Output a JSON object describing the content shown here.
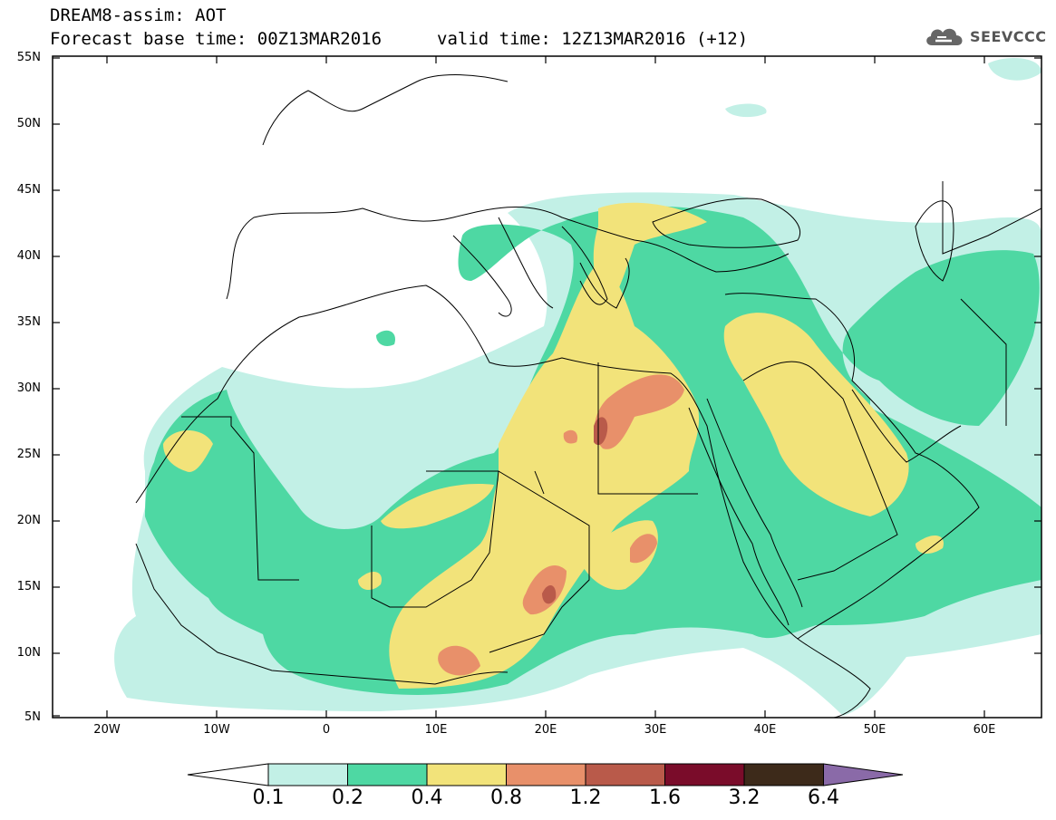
{
  "header": {
    "title": "DREAM8-assim: AOT",
    "base_time": "Forecast base time: 00Z13MAR2016",
    "valid_time": "valid time: 12Z13MAR2016 (+12)"
  },
  "logo": {
    "text": "SEEVCCC",
    "icon": "cloud-icon"
  },
  "map": {
    "projection": "lat-lon",
    "lon_range": [
      -25,
      65
    ],
    "lat_range": [
      5,
      55
    ],
    "y_ticks": [
      "55N",
      "50N",
      "45N",
      "40N",
      "35N",
      "30N",
      "25N",
      "20N",
      "15N",
      "10N",
      "5N"
    ],
    "x_ticks": [
      "20W",
      "10W",
      "0",
      "10E",
      "20E",
      "30E",
      "40E",
      "50E",
      "60E"
    ]
  },
  "colorbar": {
    "labels": [
      "0.1",
      "0.2",
      "0.4",
      "0.8",
      "1.2",
      "1.6",
      "3.2",
      "6.4"
    ],
    "colors": [
      "#ffffff",
      "#c2f0e6",
      "#4ed8a3",
      "#f2e37a",
      "#e8906a",
      "#b95a4a",
      "#7a0c2a",
      "#3d2a1a",
      "#8a6aa8"
    ]
  }
}
